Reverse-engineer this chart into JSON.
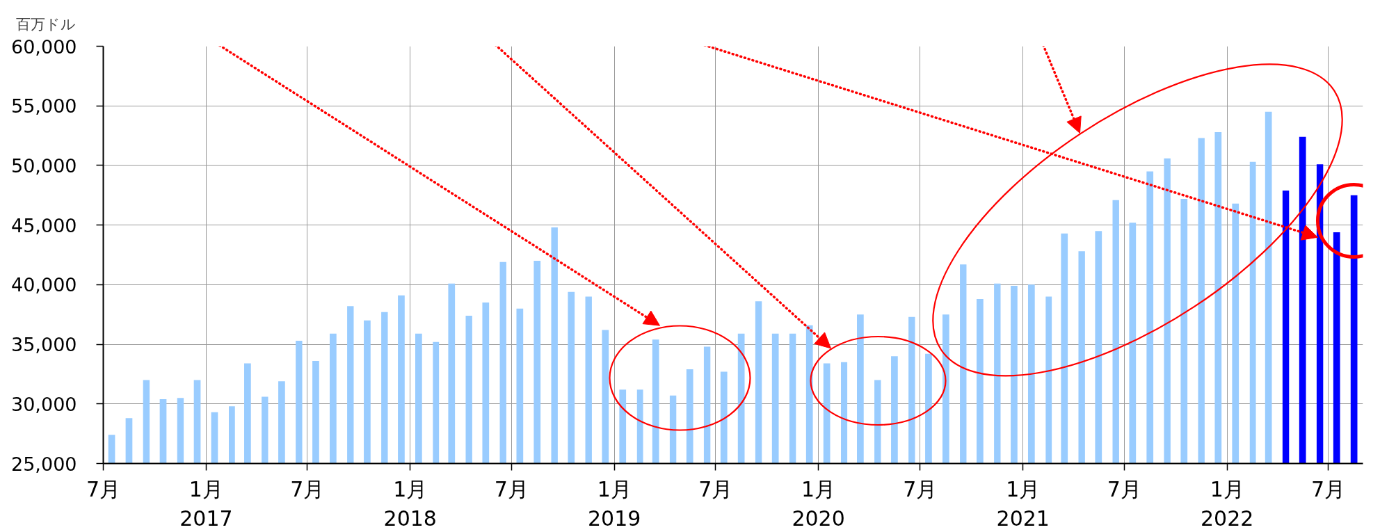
{
  "chart_data": {
    "type": "bar",
    "ylabel": "百万ドル",
    "x": [
      "2016-07-16",
      "2016-08-16",
      "2016-09-16",
      "2016-10-16",
      "2016-11-16",
      "2016-12-16",
      "2017-01-16",
      "2017-02-16",
      "2017-03-16",
      "2017-04-16",
      "2017-05-16",
      "2017-06-16",
      "2017-07-16",
      "2017-08-16",
      "2017-09-16",
      "2017-10-16",
      "2017-11-16",
      "2017-12-16",
      "2018-01-16",
      "2018-02-16",
      "2018-03-16",
      "2018-04-16",
      "2018-05-16",
      "2018-06-16",
      "2018-07-16",
      "2018-08-16",
      "2018-09-16",
      "2018-10-16",
      "2018-11-16",
      "2018-12-16",
      "2019-01-16",
      "2019-02-16",
      "2019-03-16",
      "2019-04-16",
      "2019-05-16",
      "2019-06-16",
      "2019-07-16",
      "2019-08-16",
      "2019-09-16",
      "2019-10-16",
      "2019-11-16",
      "2019-12-16",
      "2020-01-16",
      "2020-02-16",
      "2020-03-16",
      "2020-04-16",
      "2020-05-16",
      "2020-06-16",
      "2020-07-16",
      "2020-08-16",
      "2020-09-16",
      "2020-10-16",
      "2020-11-16",
      "2020-12-16",
      "2021-01-16",
      "2021-02-16",
      "2021-03-16",
      "2021-04-16",
      "2021-05-16",
      "2021-06-16",
      "2021-07-16",
      "2021-08-16",
      "2021-09-16",
      "2021-10-16",
      "2021-11-16",
      "2021-12-16",
      "2022-01-16",
      "2022-02-16",
      "2022-03-16",
      "2022-04-16",
      "2022-05-16",
      "2022-06-16",
      "2022-07-16",
      "2022-08-16"
    ],
    "values": [
      27400,
      28800,
      32000,
      30400,
      30500,
      32000,
      29300,
      29800,
      33400,
      30600,
      31900,
      35300,
      33600,
      35900,
      38200,
      37000,
      37700,
      39100,
      35900,
      35200,
      40100,
      37400,
      38500,
      41900,
      38000,
      42000,
      44800,
      39400,
      39000,
      36200,
      31200,
      31200,
      35400,
      30700,
      32900,
      34800,
      32700,
      35900,
      38600,
      35900,
      35900,
      36600,
      33400,
      33500,
      37500,
      32000,
      34000,
      37300,
      34200,
      37500,
      41700,
      38800,
      40100,
      39900,
      40000,
      39000,
      44300,
      42800,
      44500,
      47100,
      45200,
      49500,
      50600,
      47200,
      52300,
      52800,
      46800,
      50300,
      54500,
      47900,
      52400,
      50100,
      44400,
      47500
    ],
    "colors": [
      "#99ccff",
      "#99ccff",
      "#99ccff",
      "#99ccff",
      "#99ccff",
      "#99ccff",
      "#99ccff",
      "#99ccff",
      "#99ccff",
      "#99ccff",
      "#99ccff",
      "#99ccff",
      "#99ccff",
      "#99ccff",
      "#99ccff",
      "#99ccff",
      "#99ccff",
      "#99ccff",
      "#99ccff",
      "#99ccff",
      "#99ccff",
      "#99ccff",
      "#99ccff",
      "#99ccff",
      "#99ccff",
      "#99ccff",
      "#99ccff",
      "#99ccff",
      "#99ccff",
      "#99ccff",
      "#99ccff",
      "#99ccff",
      "#99ccff",
      "#99ccff",
      "#99ccff",
      "#99ccff",
      "#99ccff",
      "#99ccff",
      "#99ccff",
      "#99ccff",
      "#99ccff",
      "#99ccff",
      "#99ccff",
      "#99ccff",
      "#99ccff",
      "#99ccff",
      "#99ccff",
      "#99ccff",
      "#99ccff",
      "#99ccff",
      "#99ccff",
      "#99ccff",
      "#99ccff",
      "#99ccff",
      "#99ccff",
      "#99ccff",
      "#99ccff",
      "#99ccff",
      "#99ccff",
      "#99ccff",
      "#99ccff",
      "#99ccff",
      "#99ccff",
      "#99ccff",
      "#99ccff",
      "#99ccff",
      "#99ccff",
      "#99ccff",
      "#99ccff",
      "#0000ff",
      "#0000ff",
      "#0000ff",
      "#0000ff",
      "#0000ff"
    ],
    "xlim": [
      "2016-07",
      "2022-09"
    ],
    "xticks": [
      {
        "value": "2016-07",
        "label": "7月"
      },
      {
        "value": "2017-01",
        "label": "1月\n2017"
      },
      {
        "value": "2017-07",
        "label": "7月"
      },
      {
        "value": "2018-01",
        "label": "1月\n2018"
      },
      {
        "value": "2018-07",
        "label": "7月"
      },
      {
        "value": "2019-01",
        "label": "1月\n2019"
      },
      {
        "value": "2019-07",
        "label": "7月"
      },
      {
        "value": "2020-01",
        "label": "1月\n2020"
      },
      {
        "value": "2020-07",
        "label": "7月"
      },
      {
        "value": "2021-01",
        "label": "1月\n2021"
      },
      {
        "value": "2021-07",
        "label": "7月"
      },
      {
        "value": "2022-01",
        "label": "1月\n2022"
      },
      {
        "value": "2022-07",
        "label": "7月"
      }
    ],
    "ylim": [
      25000,
      60000
    ],
    "yticks": [
      {
        "value": 25000,
        "label": "25,000"
      },
      {
        "value": 30000,
        "label": "30,000"
      },
      {
        "value": 35000,
        "label": "35,000"
      },
      {
        "value": 40000,
        "label": "40,000"
      },
      {
        "value": 45000,
        "label": "45,000"
      },
      {
        "value": 50000,
        "label": "50,000"
      },
      {
        "value": 55000,
        "label": "55,000"
      },
      {
        "value": 60000,
        "label": "60,000"
      }
    ],
    "grid": true
  }
}
